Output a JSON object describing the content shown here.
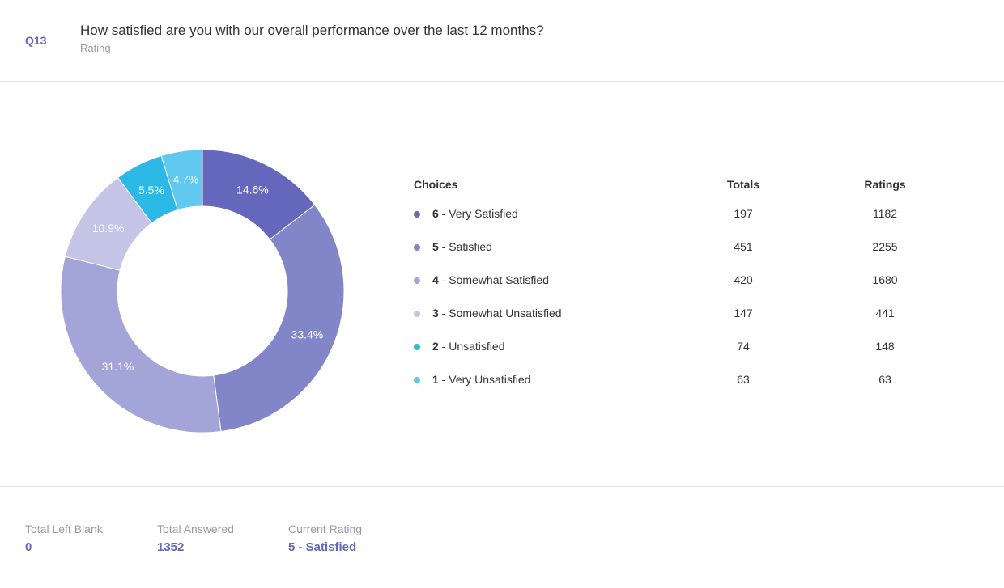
{
  "question": {
    "number": "Q13",
    "text": "How satisfied are you with our overall performance over the last 12 months?",
    "type": "Rating"
  },
  "chart_data": {
    "type": "pie",
    "style": "donut",
    "slices": [
      {
        "label": "6 - Very Satisfied",
        "value": 14.6,
        "display": "14.6%",
        "color": "#6567bd"
      },
      {
        "label": "5 - Satisfied",
        "value": 33.4,
        "display": "33.4%",
        "color": "#8385c9"
      },
      {
        "label": "4 - Somewhat Satisfied",
        "value": 31.1,
        "display": "31.1%",
        "color": "#a3a4d8"
      },
      {
        "label": "3 - Somewhat Unsatisfied",
        "value": 10.9,
        "display": "10.9%",
        "color": "#c3c4e6"
      },
      {
        "label": "2 - Unsatisfied",
        "value": 5.5,
        "display": "5.5%",
        "color": "#2db9e6"
      },
      {
        "label": "1 - Very Unsatisfied",
        "value": 4.7,
        "display": "4.7%",
        "color": "#61c9ee"
      }
    ]
  },
  "table": {
    "headers": {
      "choices": "Choices",
      "totals": "Totals",
      "ratings": "Ratings"
    },
    "rows": [
      {
        "num": "6",
        "label": " - Very Satisfied",
        "total": "197",
        "rating": "1182",
        "color": "#6567bd"
      },
      {
        "num": "5",
        "label": " - Satisfied",
        "total": "451",
        "rating": "2255",
        "color": "#8385c9"
      },
      {
        "num": "4",
        "label": " - Somewhat Satisfied",
        "total": "420",
        "rating": "1680",
        "color": "#a3a4d8"
      },
      {
        "num": "3",
        "label": " - Somewhat Unsatisfied",
        "total": "147",
        "rating": "441",
        "color": "#c3c4e6"
      },
      {
        "num": "2",
        "label": " - Unsatisfied",
        "total": "74",
        "rating": "148",
        "color": "#2db9e6"
      },
      {
        "num": "1",
        "label": " - Very Unsatisfied",
        "total": "63",
        "rating": "63",
        "color": "#61c9ee"
      }
    ]
  },
  "footer": {
    "blank_label": "Total Left Blank",
    "blank_value": "0",
    "answered_label": "Total Answered",
    "answered_value": "1352",
    "rating_label": "Current Rating",
    "rating_value": "5 - Satisfied"
  }
}
